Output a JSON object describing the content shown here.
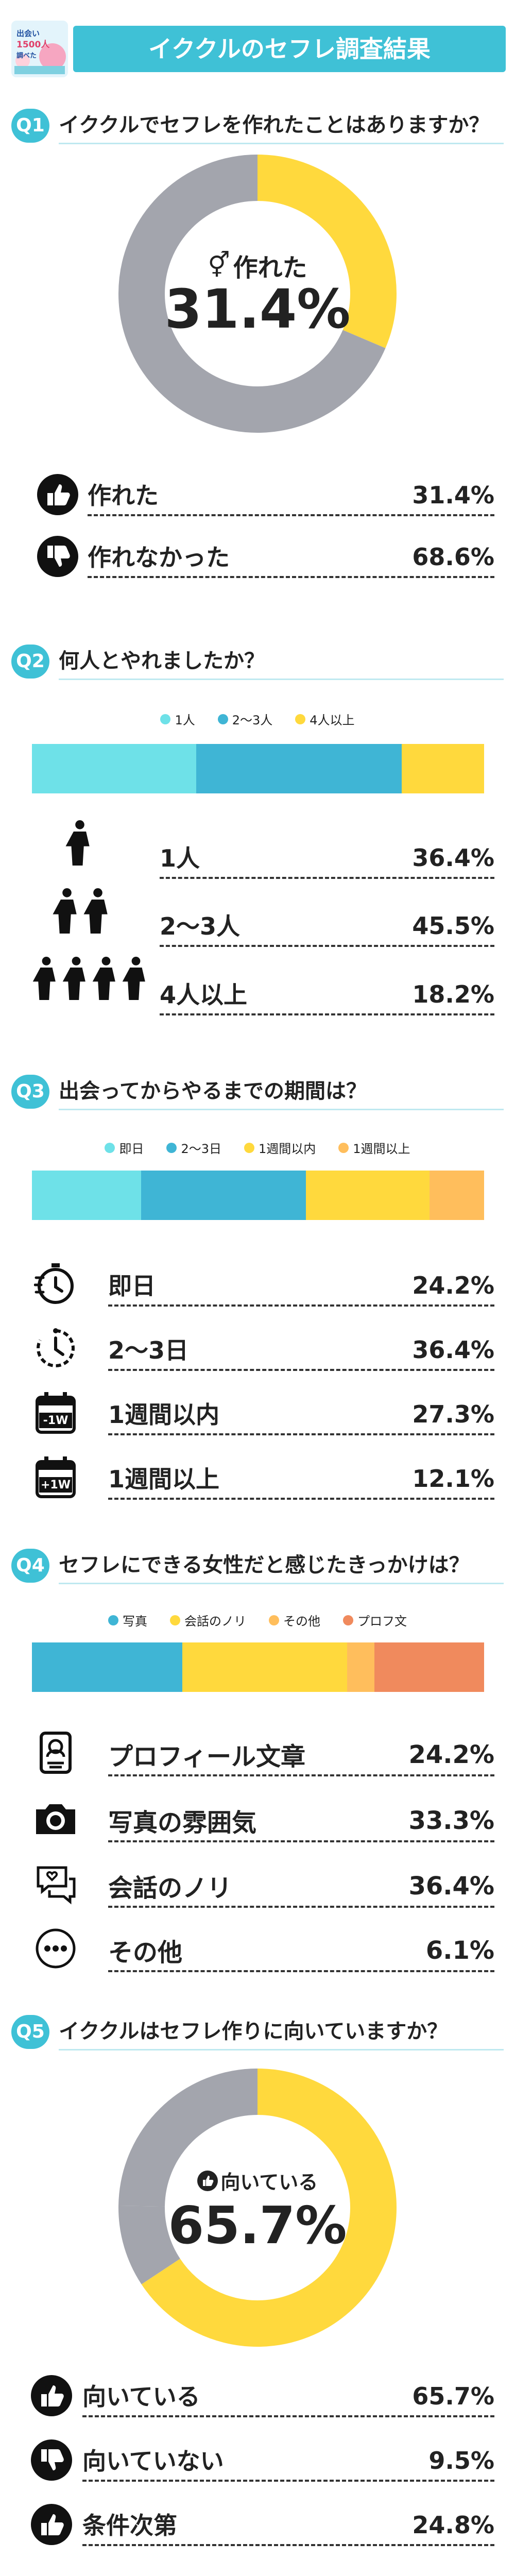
{
  "header": {
    "title": "イククルのセフレ調査結果",
    "logo_lines": [
      "出会い",
      "1500人",
      "調べた"
    ]
  },
  "colors": {
    "cyan": "#6ee1e8",
    "blue": "#3fb5d5",
    "yellow": "#ffd93d",
    "orange_light": "#ffbe5c",
    "orange": "#f08a5d",
    "gray": "#a3a5ad",
    "accent": "#3fc1d6"
  },
  "q1": {
    "badge": "Q1",
    "question": "イククルでセフレを作れたことはありますか？",
    "center_label": "作れた",
    "center_value": "31.4%",
    "rows": [
      {
        "icon": "thumbs-up",
        "label": "作れた",
        "value": "31.4%"
      },
      {
        "icon": "thumbs-down",
        "label": "作れなかった",
        "value": "68.6%"
      }
    ]
  },
  "q2": {
    "badge": "Q2",
    "question": "何人とやれましたか？",
    "legend": [
      "1人",
      "2〜3人",
      "4人以上"
    ],
    "rows": [
      {
        "icon": "one-person",
        "label": "1人",
        "value": "36.4%"
      },
      {
        "icon": "two-people",
        "label": "2〜3人",
        "value": "45.5%"
      },
      {
        "icon": "four-people",
        "label": "4人以上",
        "value": "18.2%"
      }
    ]
  },
  "q3": {
    "badge": "Q3",
    "question": "出会ってからやるまでの期間は？",
    "legend": [
      "即日",
      "2〜3日",
      "1週間以内",
      "1週間以上"
    ],
    "rows": [
      {
        "icon": "stopwatch",
        "label": "即日",
        "value": "24.2%"
      },
      {
        "icon": "clock",
        "label": "2〜3日",
        "value": "36.4%"
      },
      {
        "icon": "calendar-minus-1w",
        "label": "1週間以内",
        "value": "27.3%",
        "badge": "-1W"
      },
      {
        "icon": "calendar-plus-1w",
        "label": "1週間以上",
        "value": "12.1%",
        "badge": "+1W"
      }
    ]
  },
  "q4": {
    "badge": "Q4",
    "question": "セフレにできる女性だと感じたきっかけは？",
    "legend": [
      "写真",
      "会話のノリ",
      "その他",
      "プロフ文"
    ],
    "rows": [
      {
        "icon": "profile-card",
        "label": "プロフィール文章",
        "value": "24.2%"
      },
      {
        "icon": "camera",
        "label": "写真の雰囲気",
        "value": "33.3%"
      },
      {
        "icon": "chat-heart",
        "label": "会話のノリ",
        "value": "36.4%"
      },
      {
        "icon": "more-dots",
        "label": "その他",
        "value": "6.1%"
      }
    ]
  },
  "q5": {
    "badge": "Q5",
    "question": "イククルはセフレ作りに向いていますか？",
    "center_label": "向いている",
    "center_value": "65.7%",
    "rows": [
      {
        "icon": "thumbs-up",
        "label": "向いている",
        "value": "65.7%"
      },
      {
        "icon": "thumbs-down",
        "label": "向いていない",
        "value": "9.5%"
      },
      {
        "icon": "thumbs-up",
        "label": "条件次第",
        "value": "24.8%"
      }
    ]
  },
  "chart_data": [
    {
      "type": "pie",
      "title": "イククルでセフレを作れたことはありますか？",
      "categories": [
        "作れた",
        "作れなかった"
      ],
      "values": [
        31.4,
        68.6
      ],
      "colors": [
        "#ffd93d",
        "#a3a5ad"
      ]
    },
    {
      "type": "bar",
      "title": "何人とやれましたか？",
      "categories": [
        "1人",
        "2〜3人",
        "4人以上"
      ],
      "values": [
        36.4,
        45.5,
        18.2
      ],
      "colors": [
        "#6ee1e8",
        "#3fb5d5",
        "#ffd93d"
      ],
      "legend": "top"
    },
    {
      "type": "bar",
      "title": "出会ってからやるまでの期間は？",
      "categories": [
        "即日",
        "2〜3日",
        "1週間以内",
        "1週間以上"
      ],
      "values": [
        24.2,
        36.4,
        27.3,
        12.1
      ],
      "colors": [
        "#6ee1e8",
        "#3fb5d5",
        "#ffd93d",
        "#ffbe5c"
      ],
      "legend": "top"
    },
    {
      "type": "bar",
      "title": "セフレにできる女性だと感じたきっかけは？",
      "categories": [
        "写真",
        "会話のノリ",
        "その他",
        "プロフ文"
      ],
      "values": [
        33.3,
        36.4,
        6.1,
        24.2
      ],
      "colors": [
        "#3fb5d5",
        "#ffd93d",
        "#ffbe5c",
        "#f08a5d"
      ],
      "legend": "top"
    },
    {
      "type": "pie",
      "title": "イククルはセフレ作りに向いていますか？",
      "categories": [
        "向いている",
        "向いていない",
        "条件次第"
      ],
      "values": [
        65.7,
        9.5,
        24.8
      ],
      "colors": [
        "#ffd93d",
        "#a3a5ad",
        "#a3a5ad"
      ]
    }
  ]
}
